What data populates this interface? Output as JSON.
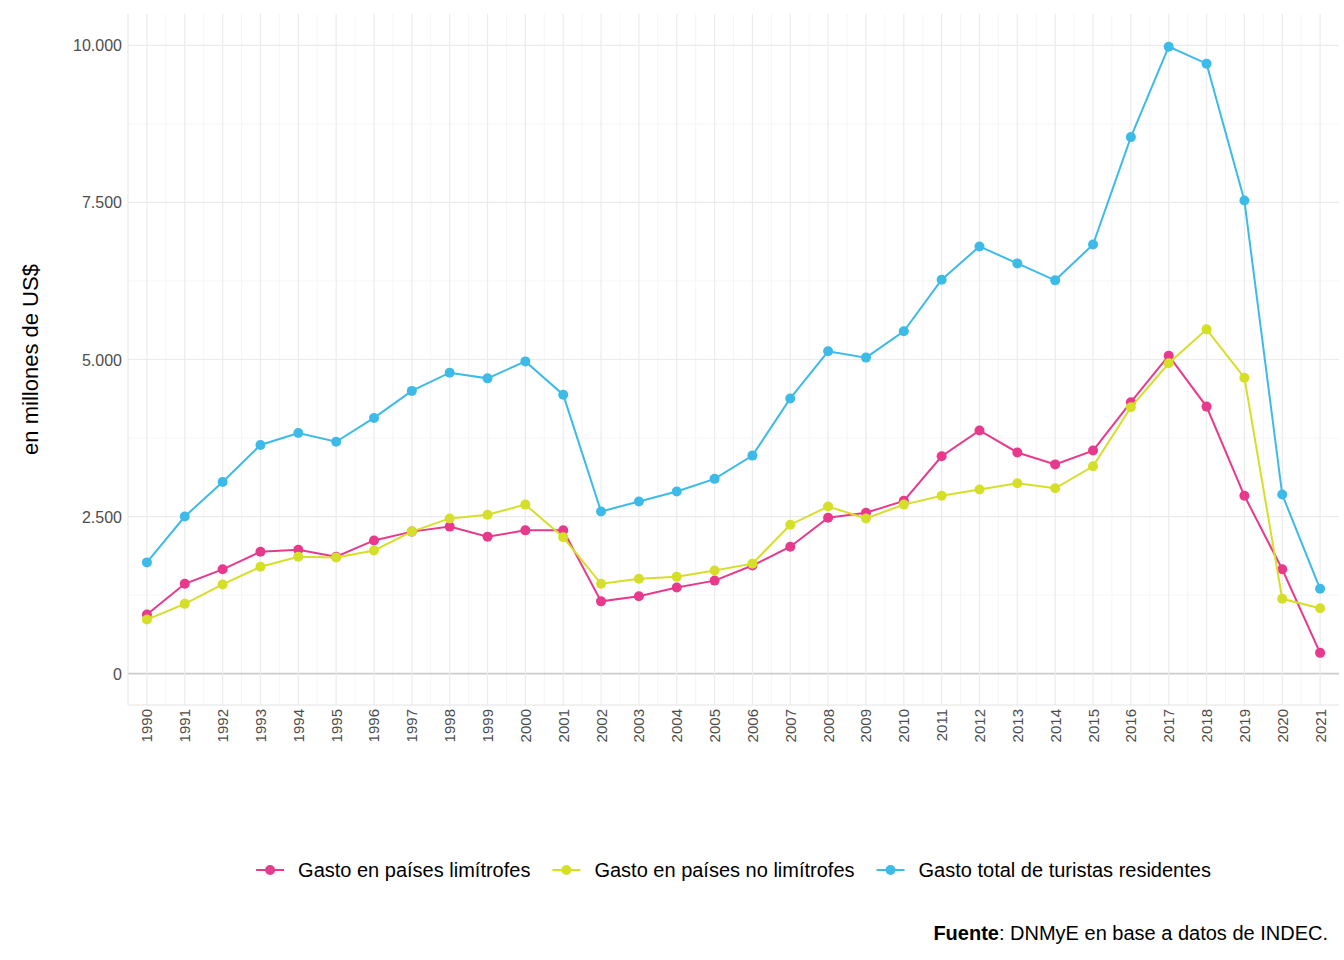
{
  "chart_data": {
    "type": "line",
    "y_label": "en millones de US$",
    "caption": "Fuente: DNMyE en base a datos de INDEC.",
    "x": [
      1990,
      1991,
      1992,
      1993,
      1994,
      1995,
      1996,
      1997,
      1998,
      1999,
      2000,
      2001,
      2002,
      2003,
      2004,
      2005,
      2006,
      2007,
      2008,
      2009,
      2010,
      2011,
      2012,
      2013,
      2014,
      2015,
      2016,
      2017,
      2018,
      2019,
      2020,
      2021
    ],
    "xlim": [
      1989.5,
      2021.5
    ],
    "xticks": [
      1990,
      1991,
      1992,
      1993,
      1994,
      1995,
      1996,
      1997,
      1998,
      1999,
      2000,
      2001,
      2002,
      2003,
      2004,
      2005,
      2006,
      2007,
      2008,
      2009,
      2010,
      2011,
      2012,
      2013,
      2014,
      2015,
      2016,
      2017,
      2018,
      2019,
      2020,
      2021
    ],
    "ylim": [
      -500,
      10500
    ],
    "yticks": [
      0,
      {
        "value": 2500,
        "label": "2.500"
      },
      {
        "value": 5000,
        "label": "5.000"
      },
      {
        "value": 7500,
        "label": "7.500"
      },
      {
        "value": 10000,
        "label": "10.000"
      }
    ],
    "grid": true,
    "legend": "bottom",
    "marker": "circle",
    "line_style": "solid",
    "series": [
      {
        "name": "Gasto en países limítrofes",
        "color": "#e8398d",
        "values": [
          940,
          1430,
          1660,
          1940,
          1970,
          1860,
          2120,
          2260,
          2340,
          2180,
          2280,
          2280,
          1150,
          1230,
          1370,
          1480,
          1720,
          2020,
          2480,
          2560,
          2750,
          3460,
          3870,
          3520,
          3330,
          3550,
          4320,
          5060,
          4250,
          2830,
          1660,
          330
        ]
      },
      {
        "name": "Gasto en países no limítrofes",
        "color": "#d5df27",
        "values": [
          860,
          1110,
          1420,
          1700,
          1860,
          1850,
          1960,
          2260,
          2470,
          2530,
          2690,
          2170,
          1430,
          1510,
          1540,
          1640,
          1750,
          2370,
          2660,
          2470,
          2690,
          2830,
          2930,
          3030,
          2950,
          3300,
          4240,
          4940,
          5480,
          4710,
          1190,
          1040
        ]
      },
      {
        "name": "Gasto total de turistas residentes",
        "color": "#3dbbe8",
        "values": [
          1770,
          2500,
          3050,
          3640,
          3830,
          3690,
          4070,
          4500,
          4790,
          4700,
          4970,
          4440,
          2580,
          2740,
          2900,
          3100,
          3470,
          4380,
          5130,
          5030,
          5450,
          6270,
          6800,
          6530,
          6260,
          6830,
          8540,
          9980,
          9710,
          7530,
          2850,
          1350
        ]
      }
    ]
  }
}
